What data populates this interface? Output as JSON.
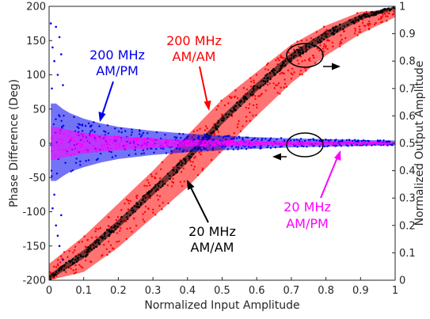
{
  "chart_data": {
    "type": "scatter",
    "title": "",
    "xlabel": "Normalized Input Amplitude",
    "ylabel_left": "Phase Difference (Deg)",
    "ylabel_right": "Normalized Output Amplitude",
    "xlim": [
      0,
      1
    ],
    "ylim_left": [
      -200,
      200
    ],
    "ylim_right": [
      0,
      1
    ],
    "xticks": [
      "0",
      "0.1",
      "0.2",
      "0.3",
      "0.4",
      "0.5",
      "0.6",
      "0.7",
      "0.8",
      "0.9",
      "1"
    ],
    "yticks_left": [
      "-200",
      "-150",
      "-100",
      "-50",
      "0",
      "50",
      "100",
      "150",
      "200"
    ],
    "yticks_right": [
      "0",
      "0.1",
      "0.2",
      "0.3",
      "0.4",
      "0.5",
      "0.6",
      "0.7",
      "0.8",
      "0.9",
      "1"
    ],
    "grid": false,
    "colors": {
      "red": "#ff0000",
      "black": "#000000",
      "blue": "#0000ee",
      "magenta": "#ff00ff"
    },
    "series": [
      {
        "color": "red",
        "axis": "right",
        "kind": "band",
        "x": [
          0.0,
          0.1,
          0.2,
          0.3,
          0.4,
          0.5,
          0.6,
          0.7,
          0.8,
          0.9,
          1.0
        ],
        "low": [
          0.0,
          0.03,
          0.12,
          0.23,
          0.34,
          0.47,
          0.6,
          0.72,
          0.82,
          0.9,
          0.96
        ],
        "high": [
          0.06,
          0.16,
          0.28,
          0.4,
          0.53,
          0.66,
          0.76,
          0.86,
          0.93,
          0.98,
          0.99
        ]
      },
      {
        "color": "black",
        "axis": "right",
        "kind": "band",
        "x": [
          0.0,
          0.1,
          0.2,
          0.3,
          0.4,
          0.5,
          0.6,
          0.7,
          0.8,
          0.9,
          1.0
        ],
        "low": [
          0.0,
          0.08,
          0.19,
          0.31,
          0.43,
          0.57,
          0.69,
          0.8,
          0.88,
          0.95,
          0.99
        ],
        "high": [
          0.02,
          0.11,
          0.22,
          0.34,
          0.46,
          0.6,
          0.72,
          0.83,
          0.91,
          0.97,
          1.0
        ]
      },
      {
        "color": "blue",
        "axis": "left",
        "kind": "band",
        "x": [
          0.005,
          0.02,
          0.04,
          0.06,
          0.1,
          0.15,
          0.2,
          0.3,
          0.4,
          0.5,
          0.6,
          0.7,
          0.8,
          0.9,
          1.0
        ],
        "low": [
          -55,
          -55,
          -48,
          -42,
          -35,
          -28,
          -23,
          -17,
          -13,
          -10,
          -8,
          -6,
          -5,
          -4,
          -3
        ],
        "high": [
          58,
          58,
          50,
          44,
          36,
          29,
          24,
          18,
          14,
          11,
          9,
          7,
          6,
          5,
          4
        ]
      },
      {
        "color": "magenta",
        "axis": "left",
        "kind": "band",
        "x": [
          0.005,
          0.02,
          0.05,
          0.1,
          0.2,
          0.3,
          0.4,
          0.5,
          0.6,
          0.8,
          1.0
        ],
        "low": [
          -25,
          -24,
          -20,
          -15,
          -10,
          -7,
          -5,
          -4,
          -3,
          -2,
          -1
        ],
        "high": [
          25,
          24,
          20,
          15,
          10,
          7,
          5,
          4,
          3,
          2,
          1
        ]
      },
      {
        "color": "blue",
        "axis": "left",
        "kind": "outliers",
        "x": [
          0.005,
          0.01,
          0.015,
          0.02,
          0.025,
          0.03,
          0.035,
          0.04,
          0.01,
          0.02,
          0.03,
          0.04,
          0.015,
          0.025,
          0.008,
          0.035
        ],
        "y": [
          175,
          140,
          120,
          170,
          100,
          155,
          130,
          85,
          -95,
          -120,
          -150,
          -170,
          -75,
          -135,
          80,
          -105
        ]
      }
    ],
    "annotations": [
      {
        "text_lines": [
          "200 MHz",
          "AM/PM"
        ],
        "color": "blue"
      },
      {
        "text_lines": [
          "200 MHz",
          "AM/AM"
        ],
        "color": "red"
      },
      {
        "text_lines": [
          "20 MHz",
          "AM/AM"
        ],
        "color": "black"
      },
      {
        "text_lines": [
          "20 MHz",
          "AM/PM"
        ],
        "color": "magenta"
      }
    ]
  }
}
